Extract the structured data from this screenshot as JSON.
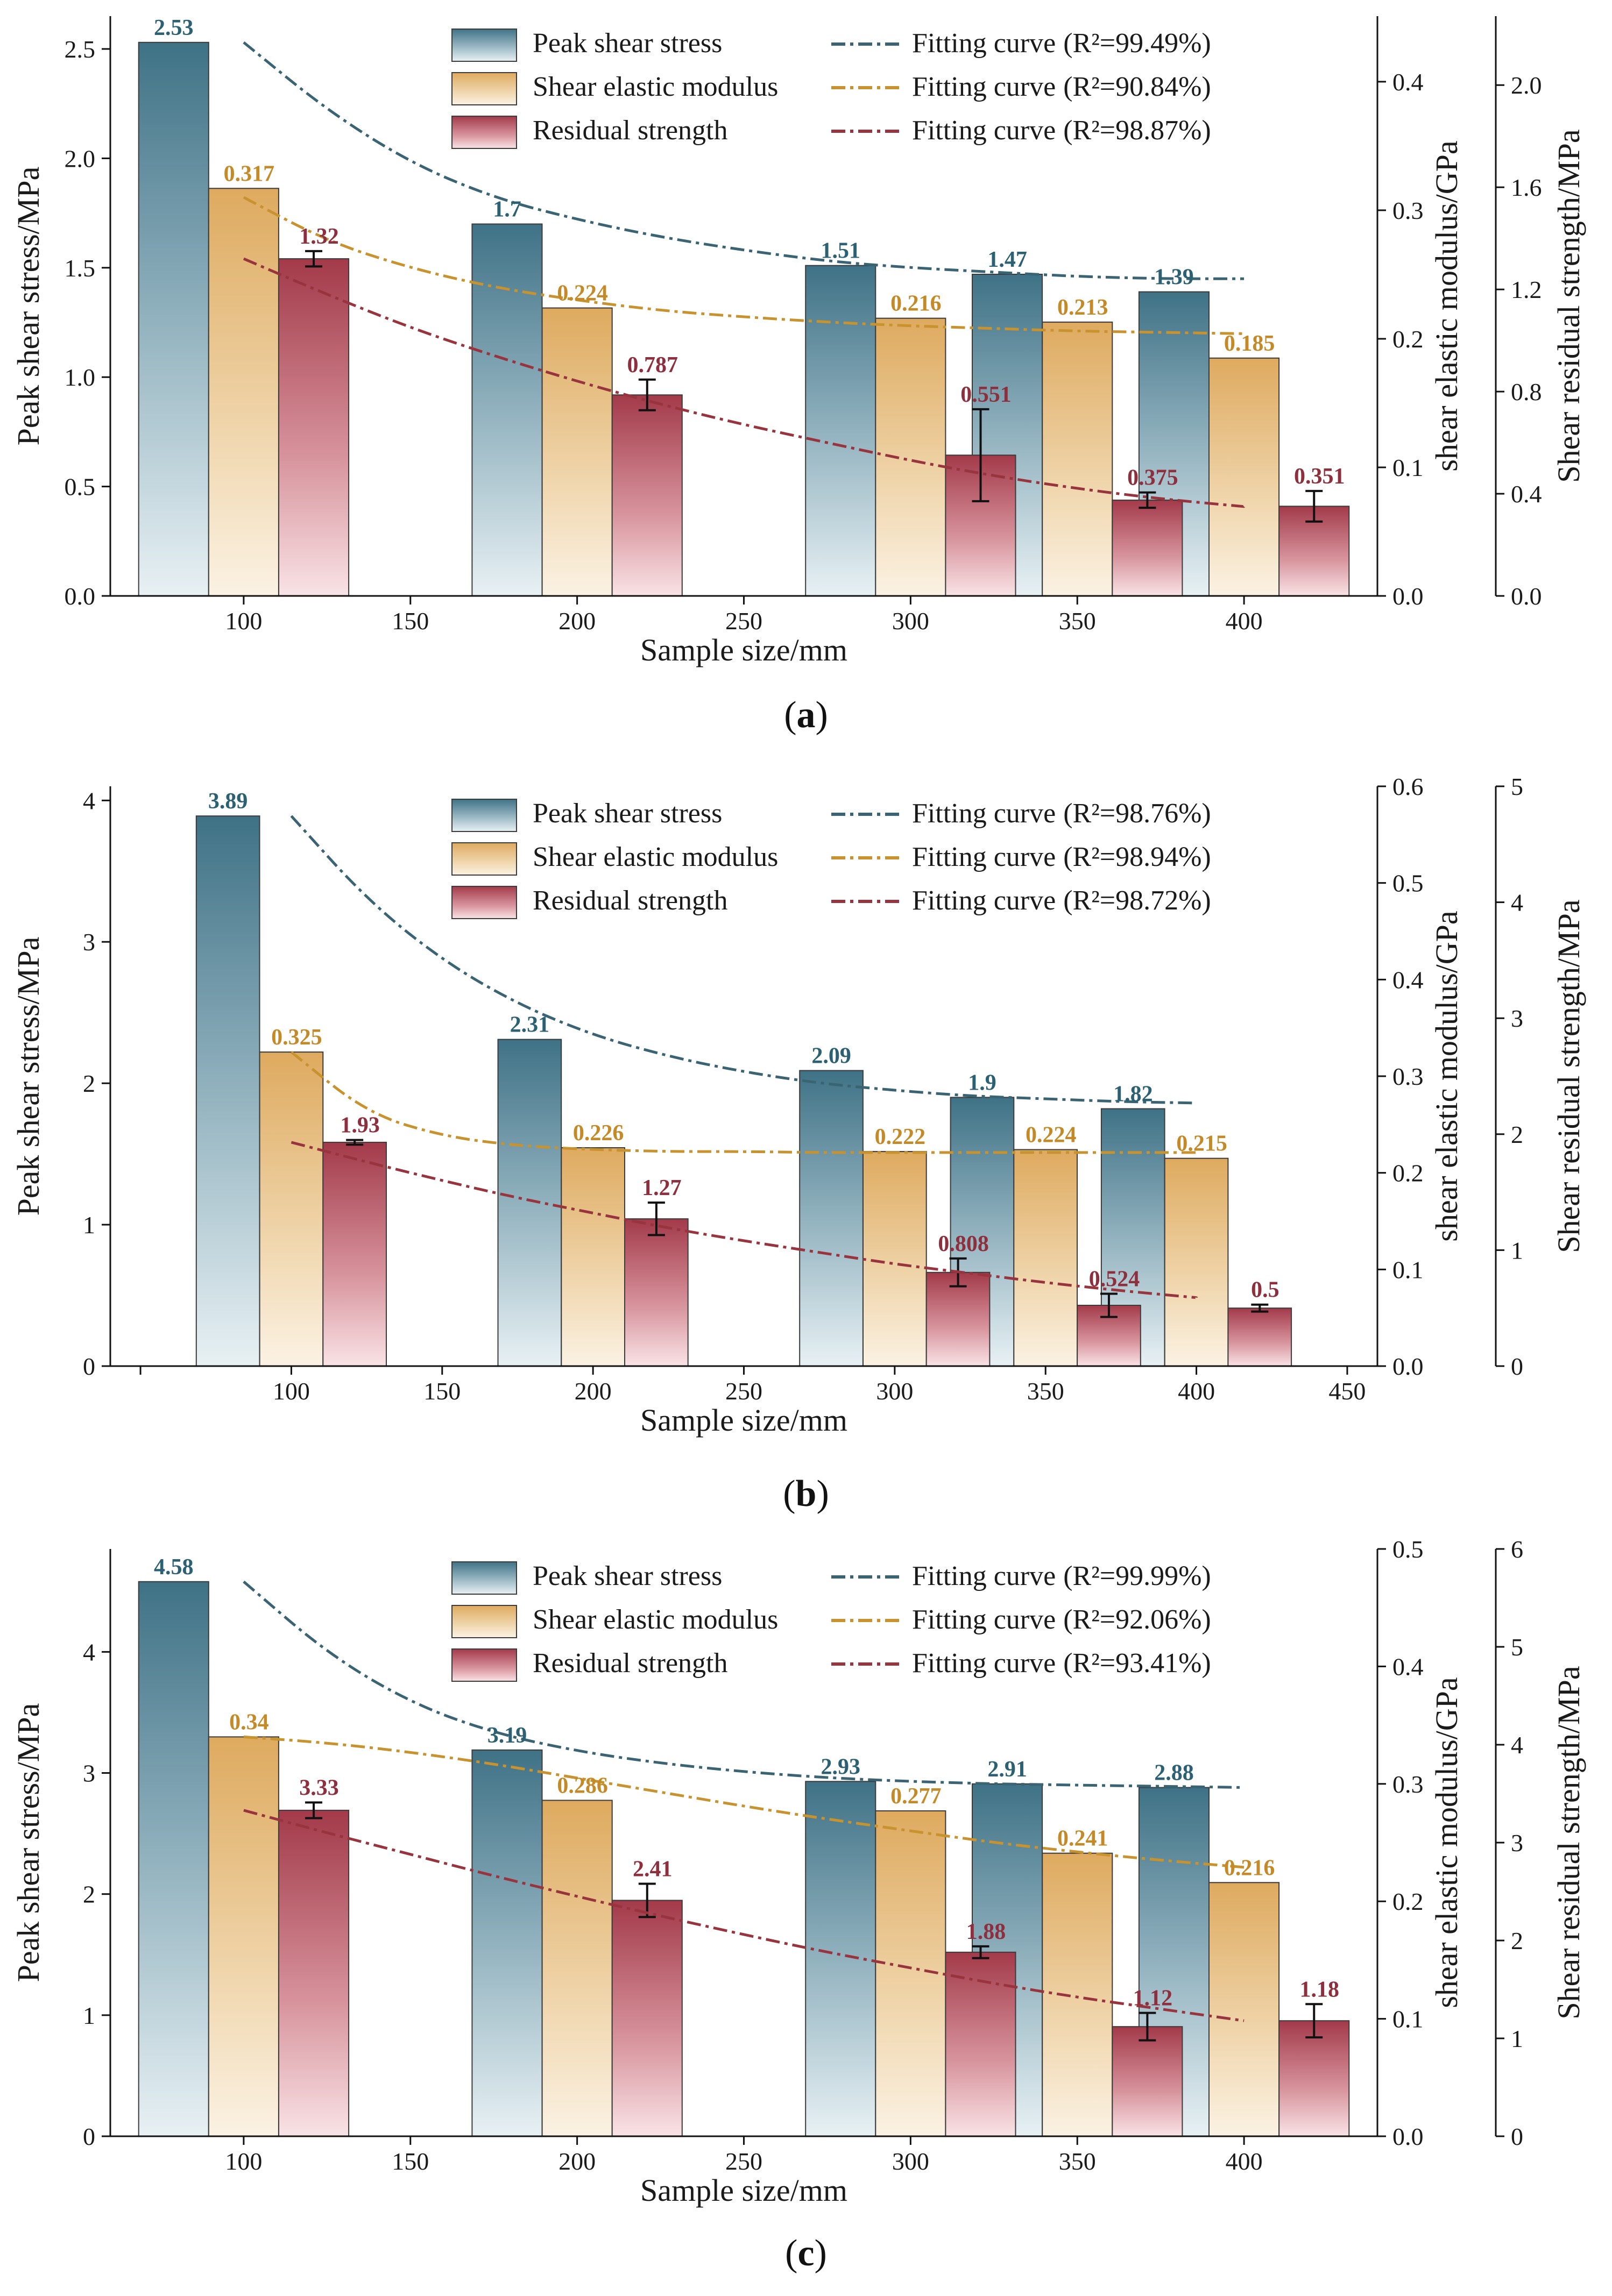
{
  "colors": {
    "peak": "#467a8e",
    "modulus": "#e3ac5e",
    "residual": "#a8404f",
    "peak_fit": "#3a6473",
    "modulus_fit": "#c8922e",
    "residual_fit": "#98343d",
    "peak_label": "#2c6173",
    "modulus_label": "#c58a28",
    "residual_label": "#8e2f3e"
  },
  "chart_data": [
    {
      "type": "bar",
      "caption": "a",
      "xlabel": "Sample size/mm",
      "xlim": [
        60,
        440
      ],
      "xticks": [
        100,
        150,
        200,
        250,
        300,
        350,
        400
      ],
      "categories": [
        100,
        200,
        300,
        350,
        400
      ],
      "axes": [
        {
          "label": "Peak shear stress/MPa",
          "ylim": [
            0,
            2.65
          ],
          "ticks": [
            "0.0",
            "0.5",
            "1.0",
            "1.5",
            "2.0",
            "2.5"
          ]
        },
        {
          "label": "shear elastic modulus/GPa",
          "ylim": [
            0,
            0.451
          ],
          "ticks": [
            "0.0",
            "0.1",
            "0.2",
            "0.3",
            "0.4"
          ]
        },
        {
          "label": "Shear residual strength/MPa",
          "ylim": [
            0,
            2.27
          ],
          "ticks": [
            "0.0",
            "0.4",
            "0.8",
            "1.2",
            "1.6",
            "2.0"
          ]
        }
      ],
      "series": [
        {
          "name": "Peak shear stress",
          "axis": 0,
          "values": [
            2.53,
            1.7,
            1.51,
            1.47,
            1.39
          ],
          "labels": [
            "2.53",
            "1.7",
            "1.51",
            "1.47",
            "1.39"
          ]
        },
        {
          "name": "Shear elastic modulus",
          "axis": 1,
          "values": [
            0.317,
            0.224,
            0.216,
            0.213,
            0.185
          ],
          "labels": [
            "0.317",
            "0.224",
            "0.216",
            "0.213",
            "0.185"
          ]
        },
        {
          "name": "Residual strength",
          "axis": 2,
          "values": [
            1.32,
            0.787,
            0.551,
            0.375,
            0.351
          ],
          "labels": [
            "1.32",
            "0.787",
            "0.551",
            "0.375",
            "0.351"
          ],
          "errors": [
            0.03,
            0.06,
            0.18,
            0.03,
            0.06
          ]
        }
      ],
      "fits": [
        {
          "name": "Fitting curve",
          "r2": "R²=99.49%",
          "axis": 0,
          "x": [
            100,
            125,
            150,
            175,
            200,
            225,
            250,
            275,
            300,
            325,
            350,
            375,
            400
          ],
          "y": [
            2.53,
            2.22,
            1.98,
            1.82,
            1.72,
            1.64,
            1.58,
            1.53,
            1.5,
            1.48,
            1.46,
            1.45,
            1.45
          ]
        },
        {
          "name": "Fitting curve",
          "r2": "R²=90.84%",
          "axis": 1,
          "x": [
            100,
            125,
            150,
            175,
            200,
            225,
            250,
            275,
            300,
            325,
            350,
            375,
            400
          ],
          "y": [
            0.31,
            0.276,
            0.255,
            0.24,
            0.23,
            0.222,
            0.217,
            0.213,
            0.21,
            0.208,
            0.206,
            0.205,
            0.204
          ]
        },
        {
          "name": "Fitting curve",
          "r2": "R²=98.87%",
          "axis": 2,
          "x": [
            100,
            125,
            150,
            175,
            200,
            225,
            250,
            275,
            300,
            325,
            350,
            375,
            400
          ],
          "y": [
            1.32,
            1.18,
            1.05,
            0.94,
            0.84,
            0.75,
            0.67,
            0.6,
            0.53,
            0.47,
            0.42,
            0.38,
            0.35
          ]
        }
      ]
    },
    {
      "type": "bar",
      "caption": "b",
      "xlabel": "Sample size/mm",
      "xlim": [
        40,
        460
      ],
      "xticks": [
        50,
        100,
        150,
        200,
        250,
        300,
        350,
        400,
        450
      ],
      "xticklabels": [
        "",
        "100",
        "150",
        "200",
        "250",
        "300",
        "350",
        "400",
        "450"
      ],
      "categories": [
        100,
        200,
        300,
        350,
        400
      ],
      "axes": [
        {
          "label": "Peak shear stress/MPa",
          "ylim": [
            0,
            4.1
          ],
          "ticks": [
            "0",
            "1",
            "2",
            "3",
            "4"
          ]
        },
        {
          "label": "shear elastic modulus/GPa",
          "ylim": [
            0,
            0.6
          ],
          "ticks": [
            "0.0",
            "0.1",
            "0.2",
            "0.3",
            "0.4",
            "0.5",
            "0.6"
          ]
        },
        {
          "label": "Shear residual strength/MPa",
          "ylim": [
            0,
            5
          ],
          "ticks": [
            "0",
            "1",
            "2",
            "3",
            "4",
            "5"
          ]
        }
      ],
      "series": [
        {
          "name": "Peak shear stress",
          "axis": 0,
          "values": [
            3.89,
            2.31,
            2.09,
            1.9,
            1.82
          ],
          "labels": [
            "3.89",
            "2.31",
            "2.09",
            "1.9",
            "1.82"
          ]
        },
        {
          "name": "Shear elastic modulus",
          "axis": 1,
          "values": [
            0.325,
            0.226,
            0.222,
            0.224,
            0.215
          ],
          "labels": [
            "0.325",
            "0.226",
            "0.222",
            "0.224",
            "0.215"
          ]
        },
        {
          "name": "Residual strength",
          "axis": 2,
          "values": [
            1.93,
            1.27,
            0.808,
            0.524,
            0.5
          ],
          "labels": [
            "1.93",
            "1.27",
            "0.808",
            "0.524",
            "0.5"
          ],
          "errors": [
            0.02,
            0.14,
            0.12,
            0.1,
            0.03
          ]
        }
      ],
      "fits": [
        {
          "name": "Fitting curve",
          "r2": "R²=98.76%",
          "axis": 0,
          "x": [
            100,
            125,
            150,
            175,
            200,
            225,
            250,
            275,
            300,
            325,
            350,
            375,
            400
          ],
          "y": [
            3.89,
            3.3,
            2.87,
            2.56,
            2.34,
            2.19,
            2.08,
            2.0,
            1.95,
            1.91,
            1.89,
            1.87,
            1.86
          ]
        },
        {
          "name": "Fitting curve",
          "r2": "R²=98.94%",
          "axis": 1,
          "x": [
            100,
            125,
            150,
            175,
            200,
            225,
            250,
            275,
            300,
            325,
            350,
            375,
            400
          ],
          "y": [
            0.325,
            0.262,
            0.238,
            0.228,
            0.224,
            0.222,
            0.222,
            0.221,
            0.221,
            0.221,
            0.221,
            0.221,
            0.221
          ]
        },
        {
          "name": "Fitting curve",
          "r2": "R²=98.72%",
          "axis": 2,
          "x": [
            100,
            125,
            150,
            175,
            200,
            225,
            250,
            275,
            300,
            325,
            350,
            375,
            400
          ],
          "y": [
            1.93,
            1.76,
            1.6,
            1.45,
            1.32,
            1.19,
            1.08,
            0.98,
            0.88,
            0.8,
            0.72,
            0.65,
            0.59
          ]
        }
      ]
    },
    {
      "type": "bar",
      "caption": "c",
      "xlabel": "Sample size/mm",
      "xlim": [
        60,
        440
      ],
      "xticks": [
        100,
        150,
        200,
        250,
        300,
        350,
        400
      ],
      "categories": [
        100,
        200,
        300,
        350,
        400
      ],
      "axes": [
        {
          "label": "Peak shear stress/MPa",
          "ylim": [
            0,
            4.85
          ],
          "ticks": [
            "0",
            "1",
            "2",
            "3",
            "4"
          ]
        },
        {
          "label": "shear elastic modulus/GPa",
          "ylim": [
            0,
            0.5
          ],
          "ticks": [
            "0.0",
            "0.1",
            "0.2",
            "0.3",
            "0.4",
            "0.5"
          ]
        },
        {
          "label": "Shear residual strength/MPa",
          "ylim": [
            0,
            6
          ],
          "ticks": [
            "0",
            "1",
            "2",
            "3",
            "4",
            "5",
            "6"
          ]
        }
      ],
      "series": [
        {
          "name": "Peak shear stress",
          "axis": 0,
          "values": [
            4.58,
            3.19,
            2.93,
            2.91,
            2.88
          ],
          "labels": [
            "4.58",
            "3.19",
            "2.93",
            "2.91",
            "2.88"
          ]
        },
        {
          "name": "Shear elastic modulus",
          "axis": 1,
          "values": [
            0.34,
            0.286,
            0.277,
            0.241,
            0.216
          ],
          "labels": [
            "0.34",
            "0.286",
            "0.277",
            "0.241",
            "0.216"
          ]
        },
        {
          "name": "Residual strength",
          "axis": 2,
          "values": [
            3.33,
            2.41,
            1.88,
            1.12,
            1.18
          ],
          "labels": [
            "3.33",
            "2.41",
            "1.88",
            "1.12",
            "1.18"
          ],
          "errors": [
            0.08,
            0.17,
            0.06,
            0.14,
            0.17
          ]
        }
      ],
      "fits": [
        {
          "name": "Fitting curve",
          "r2": "R²=99.99%",
          "axis": 0,
          "x": [
            100,
            125,
            150,
            175,
            200,
            225,
            250,
            275,
            300,
            325,
            350,
            375,
            400
          ],
          "y": [
            4.58,
            3.99,
            3.58,
            3.33,
            3.18,
            3.08,
            3.01,
            2.96,
            2.93,
            2.91,
            2.9,
            2.89,
            2.88
          ]
        },
        {
          "name": "Fitting curve",
          "r2": "R²=92.06%",
          "axis": 1,
          "x": [
            100,
            125,
            150,
            175,
            200,
            225,
            250,
            275,
            300,
            325,
            350,
            375,
            400
          ],
          "y": [
            0.34,
            0.335,
            0.327,
            0.317,
            0.305,
            0.293,
            0.281,
            0.27,
            0.26,
            0.25,
            0.242,
            0.235,
            0.229
          ]
        },
        {
          "name": "Fitting curve",
          "r2": "R²=93.41%",
          "axis": 2,
          "x": [
            100,
            125,
            150,
            175,
            200,
            225,
            250,
            275,
            300,
            325,
            350,
            375,
            400
          ],
          "y": [
            3.33,
            3.1,
            2.88,
            2.66,
            2.45,
            2.25,
            2.06,
            1.88,
            1.72,
            1.56,
            1.42,
            1.3,
            1.18
          ]
        }
      ]
    }
  ]
}
